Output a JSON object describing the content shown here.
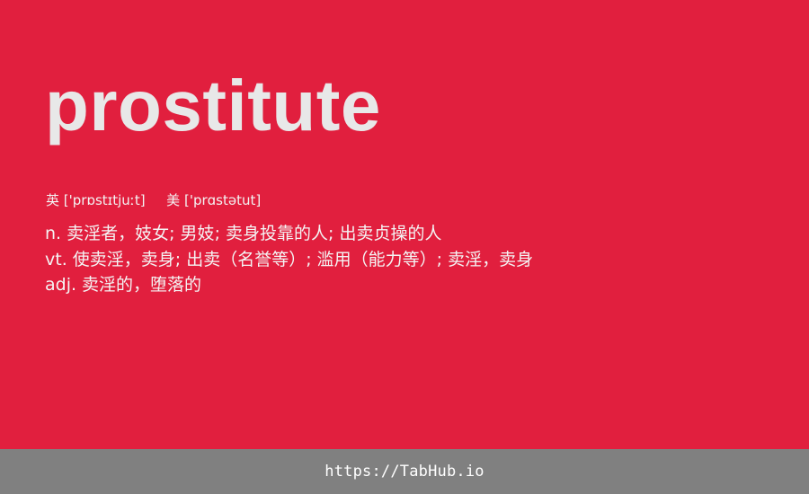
{
  "word": "prostitute",
  "phonetics": {
    "uk_label": "英",
    "uk_ipa": "['prɒstɪtjuːt]",
    "us_label": "美",
    "us_ipa": "['prɑstətut]"
  },
  "definitions": [
    "n. 卖淫者，妓女; 男妓; 卖身投靠的人; 出卖贞操的人",
    "vt. 使卖淫，卖身; 出卖（名誉等）; 滥用（能力等）; 卖淫，卖身",
    "adj. 卖淫的，堕落的"
  ],
  "footer": {
    "url": "https://TabHub.io"
  },
  "colors": {
    "card_background": "#e11f3e",
    "footer_background": "#808080",
    "word_color": "#e8e8e8"
  }
}
